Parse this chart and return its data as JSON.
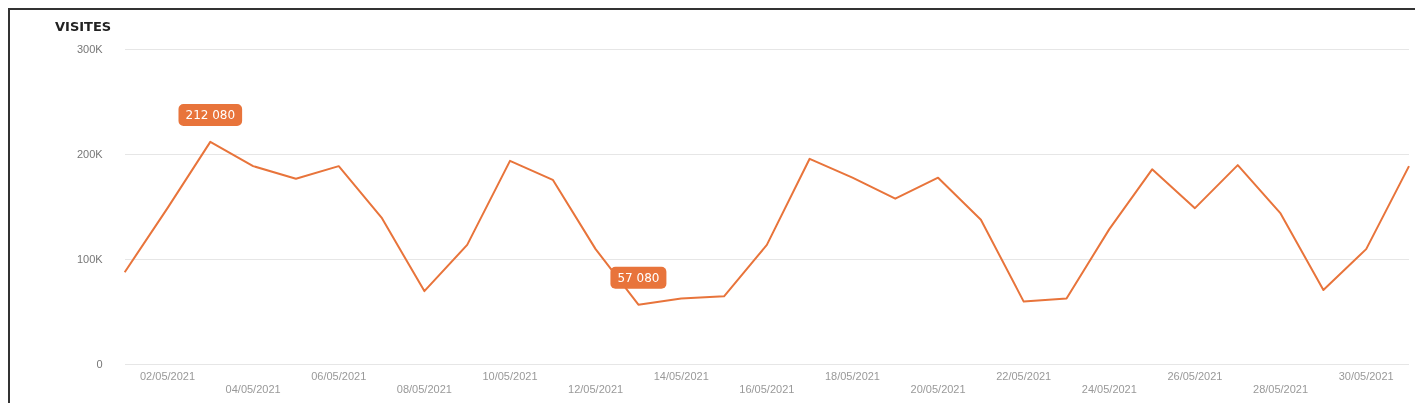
{
  "chart_data": {
    "type": "line",
    "title": "VISITES",
    "categories": [
      null,
      "02/05/2021",
      null,
      "04/05/2021",
      null,
      "06/05/2021",
      null,
      "08/05/2021",
      null,
      "10/05/2021",
      null,
      "12/05/2021",
      null,
      "14/05/2021",
      null,
      "16/05/2021",
      null,
      "18/05/2021",
      null,
      "20/05/2021",
      null,
      "22/05/2021",
      null,
      "24/05/2021",
      null,
      "26/05/2021",
      null,
      "28/05/2021",
      null,
      "30/05/2021",
      null
    ],
    "series": [
      {
        "color": "#e8743b",
        "values": [
          88000,
          149000,
          212080,
          189000,
          177000,
          189000,
          140000,
          70000,
          114000,
          194000,
          176000,
          110000,
          57080,
          63000,
          65000,
          114000,
          196000,
          178000,
          158000,
          178000,
          138000,
          60000,
          63000,
          129000,
          186000,
          149000,
          190000,
          144000,
          71000,
          110000,
          189000
        ],
        "value_labels": [
          null,
          null,
          "212 080",
          null,
          null,
          null,
          null,
          null,
          null,
          null,
          null,
          null,
          "57 080",
          null,
          null,
          null,
          null,
          null,
          null,
          null,
          null,
          null,
          null,
          null,
          null,
          null,
          null,
          null,
          null,
          null,
          null
        ]
      }
    ],
    "ylim": [
      0,
      300000
    ],
    "yticks": [
      0,
      {
        "value": 100000,
        "label": "100K"
      },
      {
        "value": 200000,
        "label": "200K"
      },
      {
        "value": 300000,
        "label": "300K"
      }
    ],
    "grid": "y",
    "legend": false,
    "marker": "none",
    "line_style": "solid"
  }
}
